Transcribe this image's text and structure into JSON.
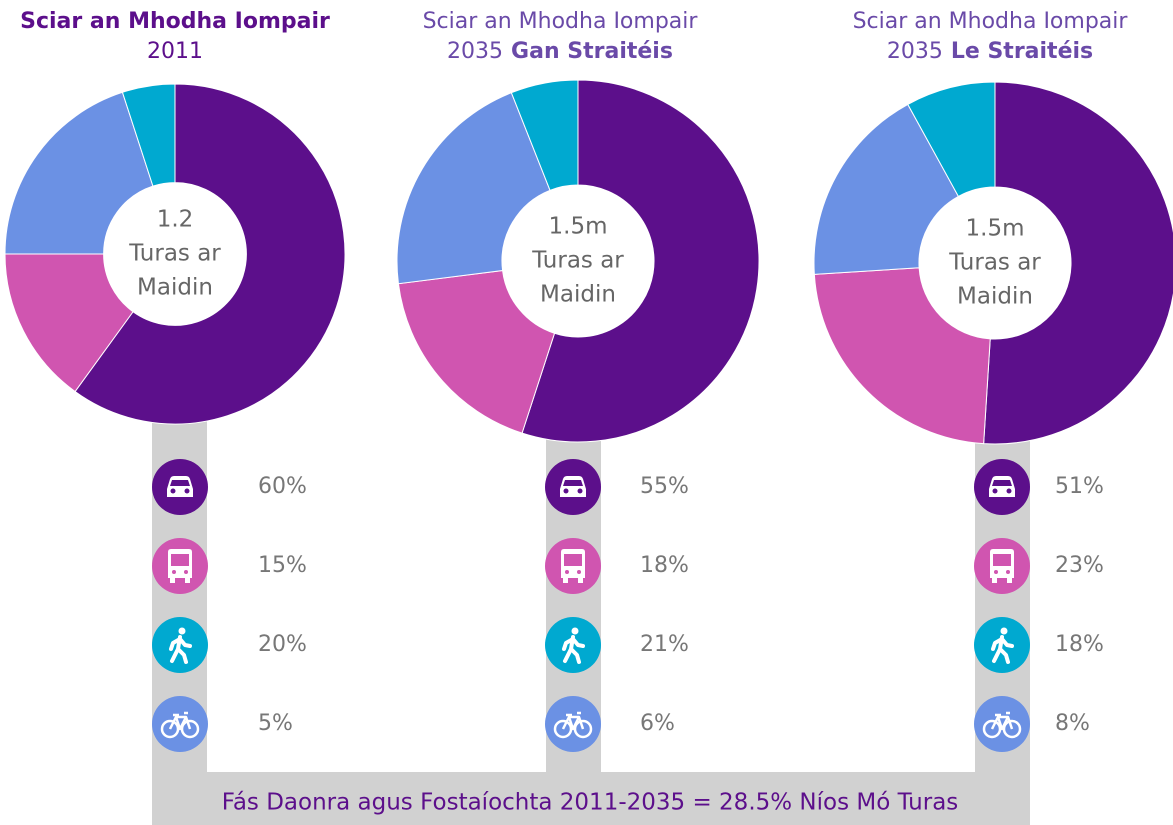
{
  "chart_data": [
    {
      "type": "donut",
      "title": "Sciar an Mhodha Iompair",
      "subtitle": "2011",
      "center_lines": [
        "1.2",
        "Turas ar",
        "Maidin"
      ],
      "categories": [
        "Car",
        "Bus",
        "Walk",
        "Cycle"
      ],
      "colors": [
        "#5c0f8b",
        "#d055b0",
        "#6b91e4",
        "#00a9d0"
      ],
      "icon_colors": [
        "#5c0f8b",
        "#d055b0",
        "#00a9d0",
        "#6b91e4"
      ],
      "values": [
        60,
        15,
        20,
        5
      ],
      "value_labels": [
        "60%",
        "15%",
        "20%",
        "5%"
      ]
    },
    {
      "type": "donut",
      "title": "Sciar an Mhodha Iompair",
      "subtitle": "2035",
      "subtitle_bold": "Gan Straitéis",
      "center_lines": [
        "1.5m",
        "Turas ar",
        "Maidin"
      ],
      "categories": [
        "Car",
        "Bus",
        "Walk",
        "Cycle"
      ],
      "colors": [
        "#5c0f8b",
        "#d055b0",
        "#6b91e4",
        "#00a9d0"
      ],
      "icon_colors": [
        "#5c0f8b",
        "#d055b0",
        "#00a9d0",
        "#6b91e4"
      ],
      "values": [
        55,
        18,
        21,
        6
      ],
      "value_labels": [
        "55%",
        "18%",
        "21%",
        "6%"
      ]
    },
    {
      "type": "donut",
      "title": "Sciar an Mhodha Iompair",
      "subtitle": "2035",
      "subtitle_bold": "Le Straitéis",
      "center_lines": [
        "1.5m",
        "Turas ar",
        "Maidin"
      ],
      "categories": [
        "Car",
        "Bus",
        "Walk",
        "Cycle"
      ],
      "colors": [
        "#5c0f8b",
        "#d055b0",
        "#6b91e4",
        "#00a9d0"
      ],
      "icon_colors": [
        "#5c0f8b",
        "#d055b0",
        "#00a9d0",
        "#6b91e4"
      ],
      "values": [
        51,
        23,
        18,
        8
      ],
      "value_labels": [
        "51%",
        "23%",
        "18%",
        "8%"
      ]
    }
  ],
  "footer": "Fás Daonra agus Fostaíochta 2011-2035 = 28.5% Níos Mó Turas"
}
